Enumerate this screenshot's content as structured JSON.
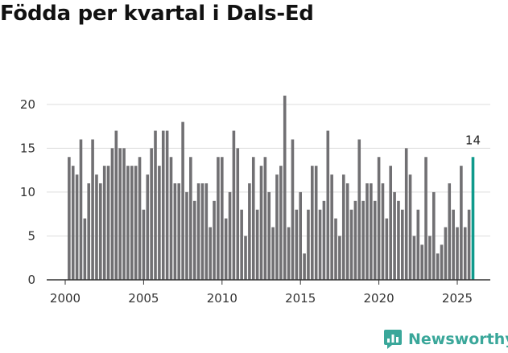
{
  "title": "Födda per kvartal i Dals-Ed",
  "brand": {
    "name": "Newsworthy",
    "icon": "bar-chart-speech-bubble-icon",
    "color": "#3aa79a"
  },
  "chart_data": {
    "type": "bar",
    "title": "Födda per kvartal i Dals-Ed",
    "xlabel": "",
    "ylabel": "",
    "ylim": [
      0,
      22
    ],
    "yticks": [
      0,
      5,
      10,
      15,
      20
    ],
    "xticks": [
      2000,
      2005,
      2010,
      2015,
      2020,
      2025
    ],
    "grid": true,
    "bar_color": "#717073",
    "highlight_color": "#0f9a8c",
    "start": {
      "year": 2000,
      "quarter": 2
    },
    "values": [
      14,
      13,
      12,
      16,
      7,
      11,
      16,
      12,
      11,
      13,
      13,
      15,
      17,
      15,
      15,
      13,
      13,
      13,
      14,
      8,
      12,
      15,
      17,
      13,
      17,
      17,
      14,
      11,
      11,
      18,
      10,
      14,
      9,
      11,
      11,
      11,
      6,
      9,
      14,
      14,
      7,
      10,
      17,
      15,
      8,
      5,
      11,
      14,
      8,
      13,
      14,
      10,
      6,
      12,
      13,
      21,
      6,
      16,
      8,
      10,
      3,
      8,
      13,
      13,
      8,
      9,
      17,
      12,
      7,
      5,
      12,
      11,
      8,
      9,
      16,
      9,
      11,
      11,
      9,
      14,
      11,
      7,
      13,
      10,
      9,
      8,
      15,
      12,
      5,
      8,
      4,
      14,
      5,
      10,
      3,
      4,
      6,
      11,
      8,
      6,
      13,
      6,
      8,
      14
    ],
    "highlight_index": 103,
    "annotations": [
      {
        "label": "14",
        "bar_index": 103
      }
    ]
  }
}
